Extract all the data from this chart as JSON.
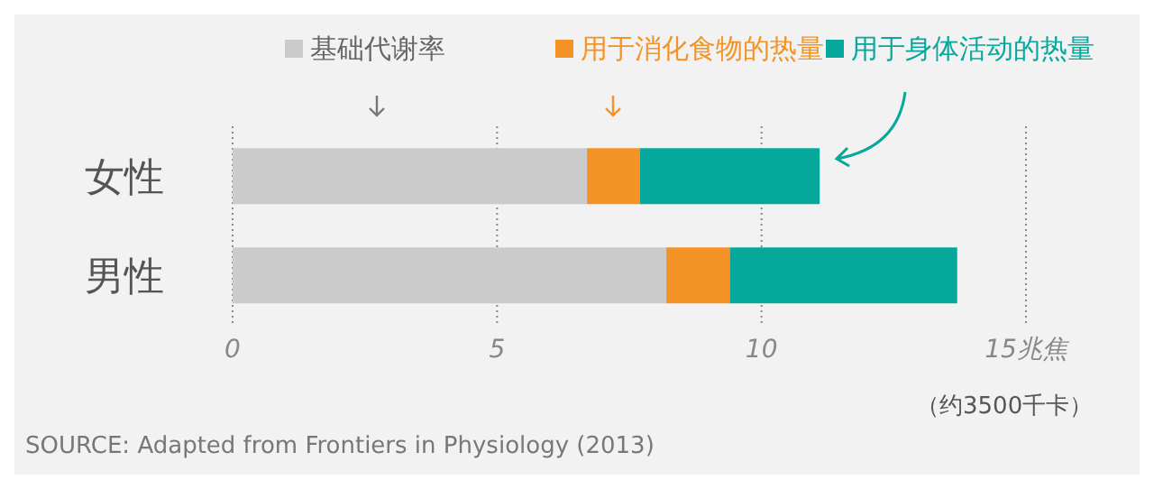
{
  "chart_data": {
    "type": "bar",
    "orientation": "horizontal",
    "stacked": true,
    "categories": [
      "女性",
      "男性"
    ],
    "series": [
      {
        "name": "基础代谢率",
        "color": "#cbcbcb",
        "values": [
          6.7,
          8.2
        ]
      },
      {
        "name": "用于消化食物的热量",
        "color": "#f39325",
        "values": [
          1.0,
          1.2
        ]
      },
      {
        "name": "用于身体活动的热量",
        "color": "#07a89c",
        "values": [
          3.4,
          4.3
        ]
      }
    ],
    "xlim": [
      0,
      15
    ],
    "xticks": [
      0,
      5,
      10,
      {
        "value": 15,
        "label": "15兆焦"
      }
    ],
    "grid": "x",
    "legend": "top",
    "annotations": [
      "（约3500千卡）",
      "SOURCE: Adapted from Frontiers in Physiology (2013)"
    ]
  }
}
